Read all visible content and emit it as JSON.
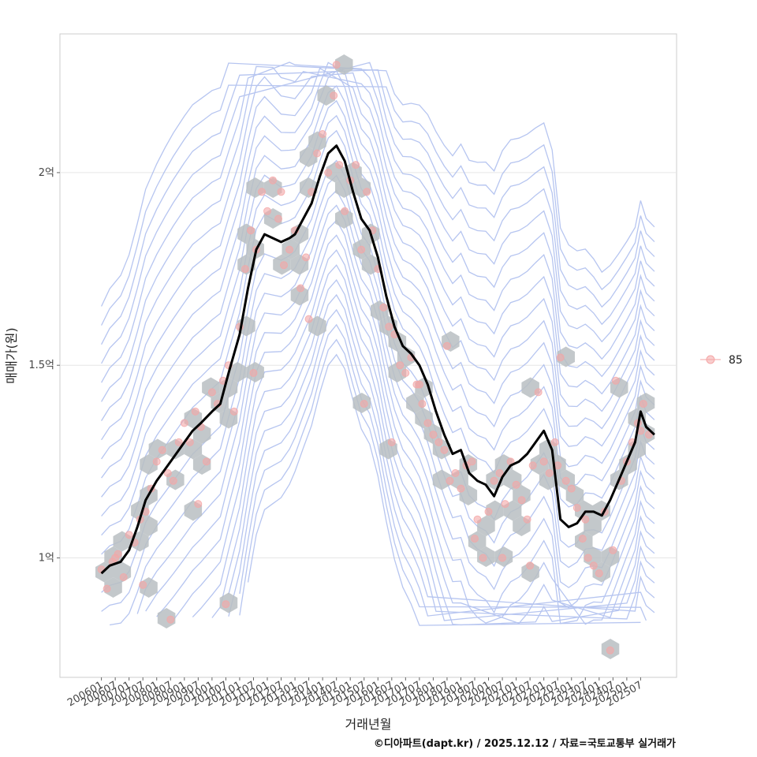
{
  "chart_data": {
    "type": "line",
    "title": "",
    "xlabel": "거래년월",
    "ylabel": "매매가(원)",
    "caption": "©디아파트(dapt.kr) / 2025.12.12 / 자료=국토교통부 실거래가",
    "legend": {
      "placement": "right",
      "entries": [
        {
          "label": "85",
          "color": "#f4a6a6"
        }
      ]
    },
    "x_ticks": [
      "200601",
      "200607",
      "200701",
      "200707",
      "200801",
      "200807",
      "200901",
      "200907",
      "201001",
      "201007",
      "201101",
      "201107",
      "201201",
      "201207",
      "201301",
      "201307",
      "201401",
      "201407",
      "201501",
      "201507",
      "201601",
      "201607",
      "201701",
      "201707",
      "201801",
      "201807",
      "201901",
      "201907",
      "202001",
      "202007",
      "202101",
      "202107",
      "202201",
      "202207",
      "202301",
      "202307",
      "202401",
      "202407",
      "202501",
      "202507"
    ],
    "y_ticks": [
      {
        "value": 1.0,
        "label": "1억"
      },
      {
        "value": 1.5,
        "label": "1.5억"
      },
      {
        "value": 2.0,
        "label": "2억"
      }
    ],
    "xlim": [
      2004.5,
      2026.8
    ],
    "ylim": [
      0.69,
      2.36
    ],
    "grid": true,
    "colors": {
      "line": "#000000",
      "point": "#f4a6a6",
      "hex": "#b9bec2",
      "contour": "#aabbee",
      "grid": "#e6e6e6"
    },
    "series": [
      {
        "name": "moving-average",
        "x": [
          2006.0,
          2006.3,
          2006.7,
          2007.0,
          2007.3,
          2007.6,
          2008.0,
          2008.3,
          2008.6,
          2009.0,
          2009.3,
          2009.6,
          2010.0,
          2010.3,
          2010.6,
          2011.0,
          2011.3,
          2011.6,
          2011.9,
          2012.2,
          2012.5,
          2012.8,
          2013.0,
          2013.3,
          2013.6,
          2013.9,
          2014.2,
          2014.5,
          2014.8,
          2015.1,
          2015.4,
          2015.7,
          2016.0,
          2016.3,
          2016.6,
          2016.9,
          2017.2,
          2017.5,
          2017.8,
          2018.1,
          2018.4,
          2018.7,
          2019.0,
          2019.3,
          2019.6,
          2019.9,
          2020.2,
          2020.5,
          2020.8,
          2021.1,
          2021.4,
          2021.7,
          2022.0,
          2022.3,
          2022.6,
          2022.9,
          2023.2,
          2023.5,
          2023.8,
          2024.1,
          2024.4,
          2024.7,
          2025.0,
          2025.3,
          2025.5,
          2025.7,
          2026.0
        ],
        "y": [
          0.96,
          0.98,
          0.99,
          1.02,
          1.08,
          1.15,
          1.2,
          1.23,
          1.26,
          1.3,
          1.33,
          1.35,
          1.38,
          1.4,
          1.48,
          1.58,
          1.7,
          1.8,
          1.84,
          1.83,
          1.82,
          1.83,
          1.84,
          1.88,
          1.92,
          1.99,
          2.05,
          2.07,
          2.03,
          1.95,
          1.88,
          1.85,
          1.78,
          1.68,
          1.6,
          1.55,
          1.53,
          1.5,
          1.45,
          1.38,
          1.32,
          1.27,
          1.28,
          1.22,
          1.2,
          1.19,
          1.16,
          1.21,
          1.24,
          1.25,
          1.27,
          1.3,
          1.33,
          1.28,
          1.1,
          1.08,
          1.09,
          1.12,
          1.12,
          1.11,
          1.15,
          1.2,
          1.25,
          1.3,
          1.38,
          1.34,
          1.32
        ]
      },
      {
        "name": "85",
        "x": [
          2006.0,
          2006.2,
          2006.4,
          2006.6,
          2006.8,
          2007.0,
          2007.2,
          2007.4,
          2007.6,
          2007.8,
          2008.0,
          2008.2,
          2008.4,
          2008.6,
          2008.8,
          2009.0,
          2009.2,
          2009.4,
          2009.6,
          2009.8,
          2010.0,
          2010.2,
          2010.4,
          2010.6,
          2010.8,
          2011.0,
          2011.2,
          2011.4,
          2011.6,
          2011.8,
          2012.0,
          2012.2,
          2012.4,
          2012.6,
          2012.8,
          2013.0,
          2013.2,
          2013.4,
          2013.6,
          2013.8,
          2014.0,
          2014.2,
          2014.4,
          2014.6,
          2014.8,
          2015.0,
          2015.2,
          2015.4,
          2015.6,
          2015.8,
          2016.0,
          2016.2,
          2016.4,
          2016.6,
          2016.8,
          2017.0,
          2017.2,
          2017.4,
          2017.6,
          2017.8,
          2018.0,
          2018.2,
          2018.4,
          2018.6,
          2018.8,
          2019.0,
          2019.2,
          2019.4,
          2019.6,
          2019.8,
          2020.0,
          2020.2,
          2020.4,
          2020.6,
          2020.8,
          2021.0,
          2021.2,
          2021.4,
          2021.6,
          2021.8,
          2022.0,
          2022.2,
          2022.4,
          2022.6,
          2022.8,
          2023.0,
          2023.2,
          2023.4,
          2023.6,
          2023.8,
          2024.0,
          2024.2,
          2024.4,
          2024.6,
          2024.8,
          2025.0,
          2025.2,
          2025.4,
          2025.6,
          2025.8,
          2006.5,
          2007.5,
          2008.5,
          2009.5,
          2010.5,
          2011.5,
          2012.5,
          2013.5,
          2014.5,
          2015.5,
          2016.5,
          2017.5,
          2018.5,
          2019.5,
          2020.5,
          2021.5,
          2022.5,
          2023.5,
          2024.5,
          2025.5
        ],
        "y": [
          0.97,
          0.92,
          0.99,
          1.01,
          0.95,
          1.06,
          1.04,
          1.1,
          1.12,
          1.18,
          1.25,
          1.28,
          1.22,
          1.2,
          1.3,
          1.35,
          1.3,
          1.38,
          1.34,
          1.25,
          1.43,
          1.4,
          1.46,
          1.5,
          1.38,
          1.6,
          1.75,
          1.85,
          1.8,
          1.95,
          1.9,
          1.98,
          1.88,
          1.76,
          1.8,
          1.85,
          1.7,
          1.78,
          1.95,
          2.05,
          2.1,
          2.0,
          2.2,
          2.02,
          1.9,
          1.98,
          2.02,
          1.8,
          1.95,
          1.85,
          1.75,
          1.65,
          1.6,
          1.58,
          1.5,
          1.48,
          1.52,
          1.45,
          1.4,
          1.35,
          1.32,
          1.3,
          1.28,
          1.2,
          1.22,
          1.18,
          1.24,
          1.25,
          1.1,
          1.0,
          1.12,
          1.2,
          1.22,
          1.14,
          1.25,
          1.19,
          1.15,
          1.1,
          1.24,
          1.43,
          1.25,
          1.22,
          1.3,
          1.52,
          1.2,
          1.18,
          1.13,
          1.05,
          1.0,
          0.98,
          0.96,
          1.12,
          0.76,
          1.46,
          1.2,
          1.25,
          1.3,
          1.35,
          1.4,
          1.32,
          1.0,
          0.93,
          0.84,
          1.14,
          0.88,
          1.48,
          1.95,
          1.62,
          2.28,
          1.4,
          1.3,
          1.45,
          1.55,
          1.05,
          1.0,
          0.98,
          1.24,
          1.1,
          1.02,
          1.33
        ]
      }
    ]
  }
}
